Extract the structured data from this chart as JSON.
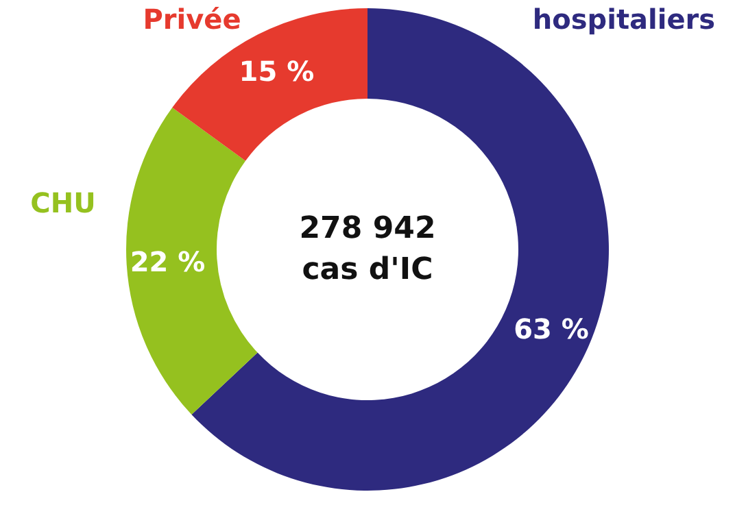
{
  "chart_data": {
    "type": "donut",
    "categories": [
      "hospitaliers",
      "CHU",
      "Privée"
    ],
    "values": [
      63,
      22,
      15
    ],
    "colors": [
      "#2e2a7f",
      "#95c11f",
      "#e63a2e"
    ],
    "value_labels": [
      "63 %",
      "22 %",
      "15 %"
    ],
    "annotations": [
      "278 942\ncas d'IC"
    ],
    "legend": false
  }
}
